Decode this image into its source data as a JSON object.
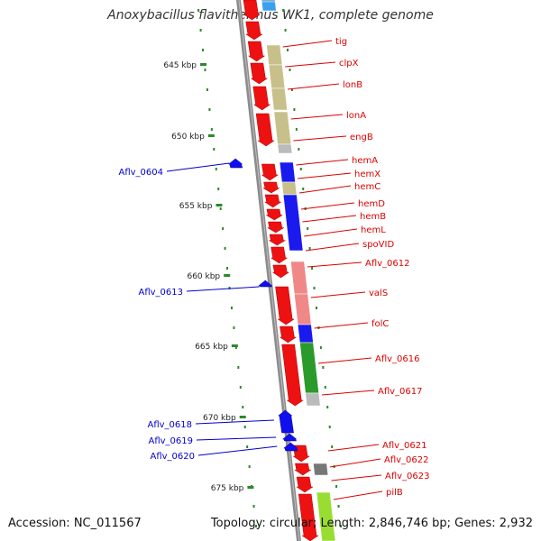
{
  "title": "Anoxybacillus flavithermus WK1, complete genome",
  "footer": {
    "accession": "Accession: NC_011567",
    "summary": "Topology: circular; Length: 2,846,746 bp; Genes: 2,932"
  },
  "colors": {
    "backbone": "#8c8c8c",
    "forward_gene": "#ee1111",
    "reverse_gene": "#1010ee",
    "label_red": "#dd0000",
    "label_blue": "#0000cc",
    "tick_green": "#2a8a2a",
    "cog_olive": "#c8c08a",
    "cog_blue": "#1a1aee",
    "cog_pink": "#f08888",
    "cog_green": "#2a9a2a",
    "cog_gray": "#bbbbbb",
    "cog_darkgray": "#777777",
    "cog_lightgreen": "#99dd33"
  },
  "ruler_ticks": [
    "645 kbp",
    "650 kbp",
    "655 kbp",
    "660 kbp",
    "665 kbp",
    "670 kbp",
    "675 kbp"
  ],
  "forward_labels": [
    "tig",
    "clpX",
    "lonB",
    "lonA",
    "engB",
    "hemA",
    "hemX",
    "hemC",
    "hemD",
    "hemB",
    "hemL",
    "spoVID",
    "Aflv_0612",
    "valS",
    "folC",
    "Aflv_0616",
    "Aflv_0617",
    "Aflv_0621",
    "Aflv_0622",
    "Aflv_0623",
    "pilB"
  ],
  "reverse_labels": [
    "Aflv_0604",
    "Aflv_0613",
    "Aflv_0618",
    "Aflv_0619",
    "Aflv_0620"
  ]
}
